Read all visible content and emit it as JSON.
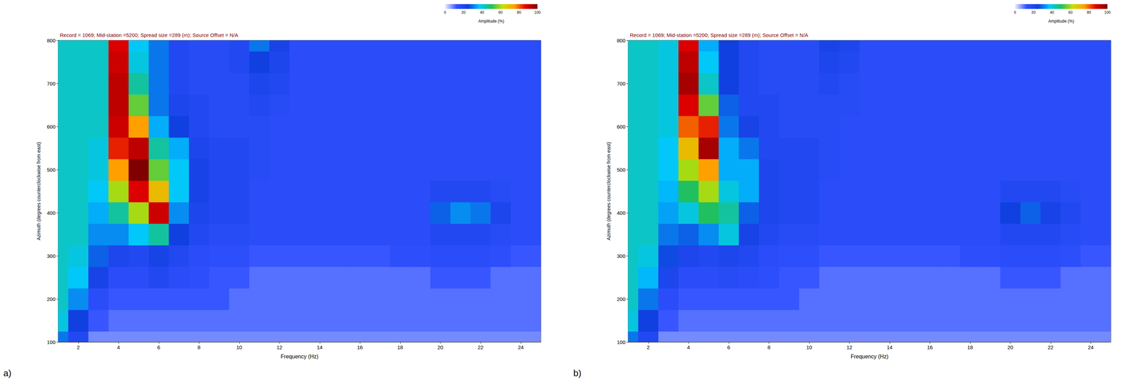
{
  "chart_data": [
    {
      "type": "heatmap",
      "panel": "a)",
      "title": "Record = 1069; Mid-station =5200; Spread size =289 (m); Source Offset = N/A",
      "x_label": "Frequency (Hz)",
      "y_label": "Azimuth (degrees counterclockwise from east)",
      "xlim": [
        1,
        25
      ],
      "xticks": [
        2,
        4,
        6,
        8,
        10,
        12,
        14,
        16,
        18,
        20,
        22,
        24
      ],
      "ylim": [
        100,
        800
      ],
      "yticks": [
        100,
        200,
        300,
        400,
        500,
        600,
        700,
        800
      ],
      "grid": true,
      "colorbar": {
        "label": "Amplitude (%)",
        "range": [
          0,
          100
        ],
        "ticks": [
          0,
          20,
          40,
          60,
          80,
          100
        ]
      },
      "cells": {
        "frequency": [
          1,
          2,
          3,
          4,
          5,
          6,
          7,
          8,
          9,
          10,
          11,
          12,
          13,
          14,
          15,
          16,
          17,
          18,
          19,
          20,
          21,
          22,
          23,
          24,
          25
        ],
        "azimuth": [
          100,
          150,
          200,
          250,
          300,
          350,
          400,
          450,
          500,
          550,
          600,
          650,
          700,
          750,
          800
        ],
        "amplitude": [
          [
            30,
            18,
            8,
            8,
            8,
            8,
            8,
            8,
            8,
            8,
            8,
            8,
            8,
            8,
            8,
            8,
            8,
            8,
            8,
            8,
            8,
            8,
            8,
            8,
            8
          ],
          [
            40,
            25,
            12,
            10,
            10,
            10,
            10,
            10,
            10,
            10,
            10,
            10,
            10,
            10,
            10,
            10,
            10,
            10,
            10,
            10,
            10,
            10,
            10,
            10,
            10
          ],
          [
            42,
            32,
            15,
            12,
            12,
            12,
            12,
            12,
            12,
            10,
            10,
            10,
            10,
            10,
            10,
            10,
            10,
            10,
            10,
            10,
            10,
            10,
            10,
            10,
            10
          ],
          [
            42,
            38,
            22,
            15,
            15,
            18,
            15,
            14,
            12,
            12,
            10,
            10,
            10,
            10,
            10,
            10,
            10,
            10,
            10,
            12,
            12,
            12,
            10,
            10,
            10
          ],
          [
            42,
            40,
            28,
            20,
            18,
            22,
            18,
            15,
            14,
            14,
            12,
            12,
            12,
            12,
            12,
            12,
            12,
            14,
            14,
            15,
            15,
            15,
            14,
            12,
            12
          ],
          [
            42,
            42,
            32,
            32,
            38,
            45,
            25,
            18,
            16,
            16,
            15,
            15,
            15,
            15,
            15,
            15,
            15,
            15,
            15,
            18,
            18,
            18,
            16,
            15,
            15
          ],
          [
            42,
            42,
            35,
            45,
            60,
            90,
            32,
            20,
            18,
            18,
            15,
            15,
            15,
            15,
            15,
            15,
            15,
            15,
            15,
            28,
            32,
            30,
            20,
            15,
            15
          ],
          [
            42,
            42,
            38,
            60,
            88,
            70,
            38,
            22,
            18,
            18,
            15,
            15,
            15,
            15,
            15,
            15,
            15,
            15,
            15,
            18,
            18,
            18,
            16,
            15,
            15
          ],
          [
            42,
            42,
            40,
            75,
            100,
            55,
            38,
            22,
            18,
            18,
            16,
            15,
            15,
            15,
            15,
            15,
            15,
            15,
            15,
            15,
            15,
            15,
            15,
            15,
            15
          ],
          [
            42,
            42,
            40,
            85,
            92,
            45,
            35,
            20,
            18,
            18,
            16,
            15,
            15,
            15,
            15,
            15,
            15,
            15,
            15,
            15,
            15,
            15,
            15,
            15,
            15
          ],
          [
            42,
            42,
            42,
            90,
            75,
            35,
            25,
            18,
            16,
            16,
            16,
            15,
            15,
            15,
            15,
            15,
            15,
            15,
            15,
            15,
            15,
            15,
            15,
            15,
            15
          ],
          [
            42,
            42,
            42,
            92,
            55,
            30,
            20,
            18,
            16,
            16,
            18,
            16,
            15,
            15,
            15,
            15,
            15,
            15,
            15,
            15,
            15,
            15,
            15,
            15,
            15
          ],
          [
            42,
            42,
            42,
            92,
            45,
            30,
            18,
            16,
            16,
            16,
            20,
            18,
            15,
            15,
            15,
            15,
            15,
            15,
            15,
            15,
            15,
            15,
            15,
            15,
            15
          ],
          [
            42,
            42,
            42,
            90,
            40,
            30,
            18,
            16,
            16,
            18,
            25,
            20,
            15,
            15,
            15,
            15,
            15,
            15,
            15,
            15,
            15,
            15,
            15,
            15,
            15
          ],
          [
            42,
            42,
            42,
            88,
            38,
            30,
            18,
            16,
            16,
            18,
            30,
            22,
            15,
            15,
            15,
            15,
            15,
            15,
            15,
            15,
            15,
            15,
            15,
            15,
            15
          ]
        ]
      }
    },
    {
      "type": "heatmap",
      "panel": "b)",
      "title": "Record = 1069; Mid-station =5200; Spread size =289 (m); Source Offset = N/A",
      "x_label": "Frequency (Hz)",
      "y_label": "Azimuth (degrees counterclockwise from east)",
      "xlim": [
        1,
        25
      ],
      "xticks": [
        2,
        4,
        6,
        8,
        10,
        12,
        14,
        16,
        18,
        20,
        22,
        24
      ],
      "ylim": [
        100,
        800
      ],
      "yticks": [
        100,
        200,
        300,
        400,
        500,
        600,
        700,
        800
      ],
      "grid": true,
      "colorbar": {
        "label": "Amplitude (%)",
        "range": [
          0,
          100
        ],
        "ticks": [
          0,
          20,
          40,
          60,
          80,
          100
        ]
      },
      "cells": {
        "frequency": [
          1,
          2,
          3,
          4,
          5,
          6,
          7,
          8,
          9,
          10,
          11,
          12,
          13,
          14,
          15,
          16,
          17,
          18,
          19,
          20,
          21,
          22,
          23,
          24,
          25
        ],
        "azimuth": [
          100,
          150,
          200,
          250,
          300,
          350,
          400,
          450,
          500,
          550,
          600,
          650,
          700,
          750,
          800
        ],
        "amplitude": [
          [
            30,
            18,
            8,
            8,
            8,
            8,
            8,
            8,
            8,
            8,
            8,
            8,
            8,
            8,
            8,
            8,
            8,
            8,
            8,
            8,
            8,
            8,
            8,
            8,
            8
          ],
          [
            40,
            25,
            12,
            10,
            10,
            10,
            10,
            10,
            10,
            10,
            10,
            10,
            10,
            10,
            10,
            10,
            10,
            10,
            10,
            10,
            10,
            10,
            10,
            10,
            10
          ],
          [
            42,
            30,
            15,
            12,
            12,
            12,
            12,
            12,
            12,
            10,
            10,
            10,
            10,
            10,
            10,
            10,
            10,
            10,
            10,
            10,
            10,
            10,
            10,
            10,
            10
          ],
          [
            42,
            36,
            20,
            15,
            15,
            16,
            15,
            14,
            12,
            12,
            10,
            10,
            10,
            10,
            10,
            10,
            10,
            10,
            10,
            12,
            12,
            12,
            10,
            10,
            10
          ],
          [
            42,
            40,
            26,
            20,
            18,
            20,
            18,
            15,
            14,
            14,
            12,
            12,
            12,
            12,
            12,
            12,
            12,
            14,
            14,
            15,
            15,
            15,
            14,
            12,
            12
          ],
          [
            42,
            42,
            30,
            28,
            32,
            40,
            22,
            18,
            16,
            16,
            15,
            15,
            15,
            15,
            15,
            15,
            15,
            15,
            15,
            18,
            18,
            18,
            16,
            15,
            15
          ],
          [
            42,
            42,
            34,
            40,
            50,
            45,
            28,
            20,
            18,
            18,
            15,
            15,
            15,
            15,
            15,
            15,
            15,
            15,
            15,
            25,
            28,
            22,
            18,
            15,
            15
          ],
          [
            42,
            42,
            36,
            50,
            60,
            40,
            35,
            20,
            18,
            18,
            15,
            15,
            15,
            15,
            15,
            15,
            15,
            15,
            15,
            18,
            18,
            18,
            16,
            15,
            15
          ],
          [
            42,
            42,
            38,
            60,
            75,
            35,
            35,
            20,
            18,
            18,
            16,
            15,
            15,
            15,
            15,
            15,
            15,
            15,
            15,
            15,
            15,
            15,
            15,
            15,
            15
          ],
          [
            42,
            42,
            38,
            70,
            95,
            35,
            30,
            18,
            18,
            18,
            16,
            15,
            15,
            15,
            15,
            15,
            15,
            15,
            15,
            15,
            15,
            15,
            15,
            15,
            15
          ],
          [
            42,
            42,
            40,
            80,
            85,
            30,
            22,
            18,
            16,
            16,
            16,
            15,
            15,
            15,
            15,
            15,
            15,
            15,
            15,
            15,
            15,
            15,
            15,
            15,
            15
          ],
          [
            42,
            42,
            40,
            88,
            55,
            28,
            18,
            18,
            16,
            16,
            16,
            16,
            15,
            15,
            15,
            15,
            15,
            15,
            15,
            15,
            15,
            15,
            15,
            15,
            15
          ],
          [
            42,
            42,
            40,
            95,
            42,
            25,
            18,
            16,
            16,
            16,
            18,
            16,
            15,
            15,
            15,
            15,
            15,
            15,
            15,
            15,
            15,
            15,
            15,
            15,
            15
          ],
          [
            42,
            42,
            40,
            92,
            38,
            25,
            18,
            16,
            16,
            16,
            20,
            18,
            15,
            15,
            15,
            15,
            15,
            15,
            15,
            15,
            15,
            15,
            15,
            15,
            15
          ],
          [
            42,
            42,
            40,
            88,
            35,
            25,
            18,
            16,
            16,
            16,
            22,
            20,
            15,
            15,
            15,
            15,
            15,
            15,
            15,
            15,
            15,
            15,
            15,
            15,
            15
          ]
        ]
      }
    }
  ]
}
